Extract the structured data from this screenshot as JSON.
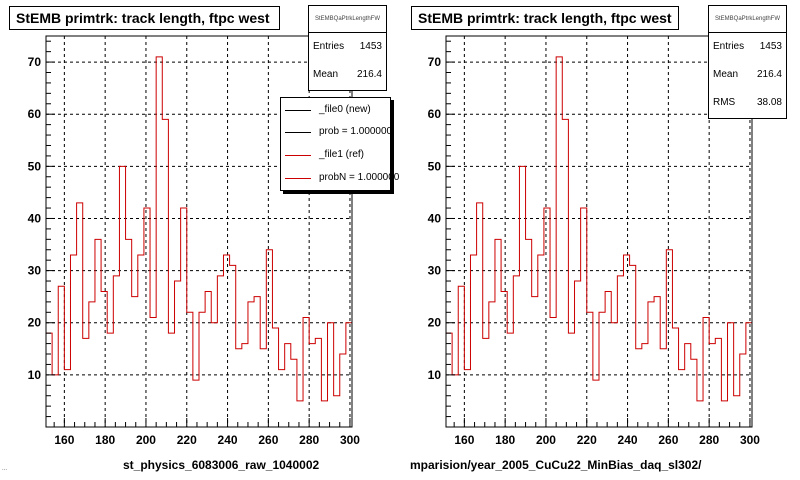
{
  "chart_data": [
    {
      "type": "histogram",
      "title": "StEMB primtrk: track length, ftpc west",
      "stats": {
        "name": "StEMBQaPtrkLengthFW",
        "entries_label": "Entries",
        "entries": "1453",
        "mean_label": "Mean",
        "mean": "216.4"
      },
      "legend": [
        {
          "label": "_file0 (new)",
          "color": "#000000"
        },
        {
          "label": "prob = 1.000000",
          "color": "#000000"
        },
        {
          "label": "_file1 (ref)",
          "color": "#cc0000"
        },
        {
          "label": "probN = 1.000000",
          "color": "#cc0000"
        }
      ],
      "xlabel": "st_physics_6083006_raw_1040002",
      "xlim": [
        151,
        301
      ],
      "ylim": [
        0,
        75
      ],
      "xticks": [
        160,
        180,
        200,
        220,
        240,
        260,
        280,
        300
      ],
      "yticks": [
        10,
        20,
        30,
        40,
        50,
        60,
        70
      ],
      "grid": true,
      "series": [
        {
          "color": "#cc0000",
          "bin_edges": [
            151,
            154,
            157,
            160,
            163,
            166,
            169,
            172,
            175,
            178,
            181,
            184,
            187,
            190,
            193,
            196,
            199,
            202,
            205,
            208,
            211,
            214,
            217,
            220,
            223,
            226,
            229,
            232,
            235,
            238,
            241,
            244,
            247,
            250,
            253,
            256,
            259,
            262,
            265,
            268,
            271,
            274,
            277,
            280,
            283,
            286,
            289,
            292,
            295,
            298,
            301
          ],
          "values": [
            18,
            10,
            27,
            11,
            33,
            43,
            17,
            24,
            36,
            26,
            18,
            29,
            50,
            36,
            25,
            33,
            42,
            21,
            71,
            59,
            18,
            28,
            42,
            22,
            9,
            22,
            26,
            20,
            29,
            33,
            31,
            15,
            16,
            24,
            25,
            15,
            34,
            19,
            11,
            16,
            13,
            5,
            21,
            16,
            17,
            5,
            20,
            6,
            14,
            20
          ]
        }
      ]
    },
    {
      "type": "histogram",
      "title": "StEMB primtrk: track length, ftpc west",
      "stats": {
        "name": "StEMBQaPtrkLengthFW",
        "entries_label": "Entries",
        "entries": "1453",
        "mean_label": "Mean",
        "mean": "216.4",
        "rms_label": "RMS",
        "rms": "38.08"
      },
      "xlabel": "mparision/year_2005_CuCu22_MinBias_daq_sl302/",
      "xlim": [
        151,
        301
      ],
      "ylim": [
        0,
        75
      ],
      "xticks": [
        160,
        180,
        200,
        220,
        240,
        260,
        280,
        300
      ],
      "yticks": [
        10,
        20,
        30,
        40,
        50,
        60,
        70
      ],
      "grid": true,
      "series": [
        {
          "color": "#cc0000",
          "bin_edges": [
            151,
            154,
            157,
            160,
            163,
            166,
            169,
            172,
            175,
            178,
            181,
            184,
            187,
            190,
            193,
            196,
            199,
            202,
            205,
            208,
            211,
            214,
            217,
            220,
            223,
            226,
            229,
            232,
            235,
            238,
            241,
            244,
            247,
            250,
            253,
            256,
            259,
            262,
            265,
            268,
            271,
            274,
            277,
            280,
            283,
            286,
            289,
            292,
            295,
            298,
            301
          ],
          "values": [
            18,
            10,
            27,
            11,
            33,
            43,
            17,
            24,
            36,
            26,
            18,
            29,
            50,
            36,
            25,
            33,
            42,
            21,
            71,
            59,
            18,
            28,
            42,
            22,
            9,
            22,
            26,
            20,
            29,
            33,
            31,
            15,
            16,
            24,
            25,
            15,
            34,
            19,
            11,
            16,
            13,
            5,
            21,
            16,
            17,
            5,
            20,
            6,
            14,
            20
          ]
        }
      ]
    }
  ],
  "footer_text": "..."
}
